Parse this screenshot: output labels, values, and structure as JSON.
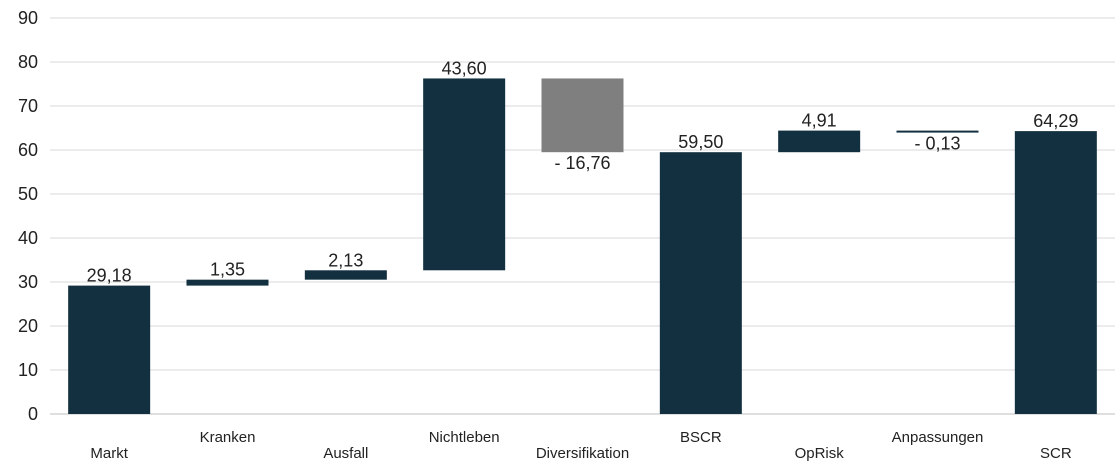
{
  "chart_data": {
    "type": "bar",
    "subtype": "waterfall",
    "title": "",
    "xlabel": "",
    "ylabel": "",
    "ylim": [
      0,
      90
    ],
    "yticks": [
      0,
      10,
      20,
      30,
      40,
      50,
      60,
      70,
      80,
      90
    ],
    "grid": true,
    "legend": "none",
    "colors": {
      "main": "#12303f",
      "negative": "#7f7f7f",
      "grid": "#d9d9d9",
      "text": "#222222"
    },
    "bars": [
      {
        "category": "Markt",
        "base": 0,
        "top": 29.18,
        "label": "29,18",
        "color": "#12303f",
        "label_pos": "above"
      },
      {
        "category": "Kranken",
        "base": 29.18,
        "top": 30.53,
        "label": "1,35",
        "color": "#12303f",
        "label_pos": "above"
      },
      {
        "category": "Ausfall",
        "base": 30.53,
        "top": 32.66,
        "label": "2,13",
        "color": "#12303f",
        "label_pos": "above"
      },
      {
        "category": "Nichtleben",
        "base": 32.66,
        "top": 76.26,
        "label": "43,60",
        "color": "#12303f",
        "label_pos": "above"
      },
      {
        "category": "Diversifikation",
        "base": 59.5,
        "top": 76.26,
        "label": "- 16,76",
        "color": "#7f7f7f",
        "label_pos": "below"
      },
      {
        "category": "BSCR",
        "base": 0,
        "top": 59.5,
        "label": "59,50",
        "color": "#12303f",
        "label_pos": "above"
      },
      {
        "category": "OpRisk",
        "base": 59.5,
        "top": 64.41,
        "label": "4,91",
        "color": "#12303f",
        "label_pos": "above"
      },
      {
        "category": "Anpassungen",
        "base": 64.29,
        "top": 64.41,
        "label": "- 0,13",
        "color": "#12303f",
        "label_pos": "below"
      },
      {
        "category": "SCR",
        "base": 0,
        "top": 64.29,
        "label": "64,29",
        "color": "#12303f",
        "label_pos": "above"
      }
    ]
  }
}
